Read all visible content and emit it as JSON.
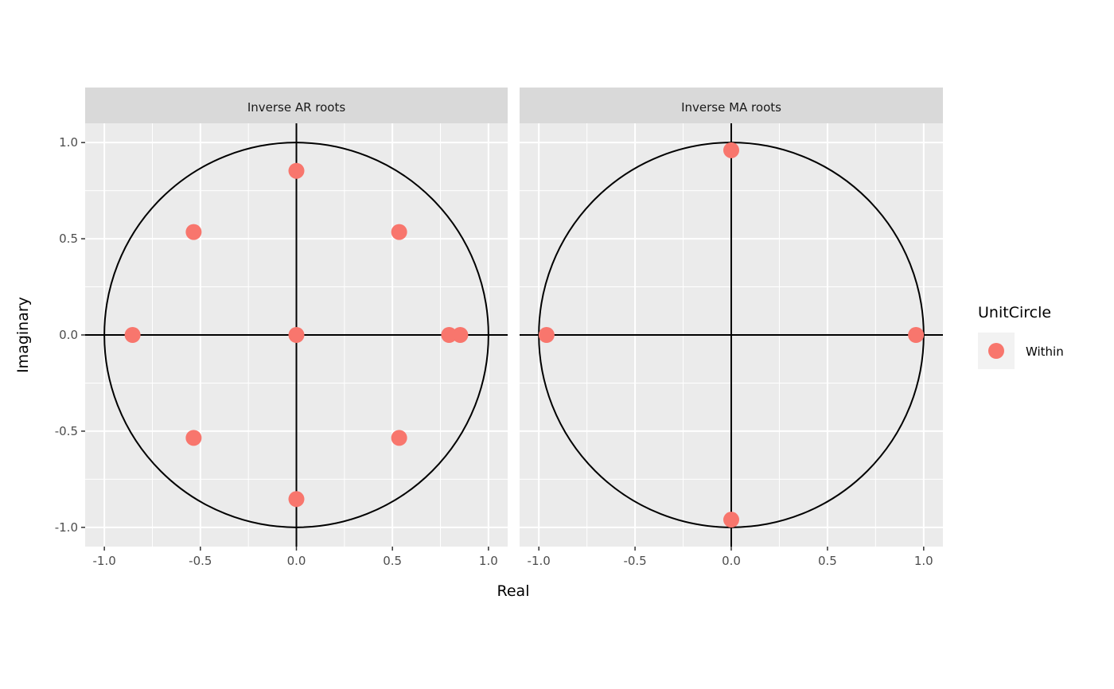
{
  "chart_data": {
    "type": "scatter",
    "xlabel": "Real",
    "ylabel": "Imaginary",
    "xlim": [
      -1.1,
      1.1
    ],
    "ylim": [
      -1.1,
      1.1
    ],
    "x_ticks": [
      "-1.0",
      "-0.5",
      "0.0",
      "0.5",
      "1.0"
    ],
    "y_ticks": [
      "-1.0",
      "-0.5",
      "0.0",
      "0.5",
      "1.0"
    ],
    "grid": true,
    "unit_circle": true,
    "legend": {
      "title": "UnitCircle",
      "position": "right",
      "entries": [
        {
          "label": "Within",
          "color": "#F8766D"
        }
      ]
    },
    "point_color": "#F8766D",
    "panels": [
      {
        "title": "Inverse AR roots",
        "points": [
          {
            "x": 0.0,
            "y": 0.853
          },
          {
            "x": -0.535,
            "y": 0.535
          },
          {
            "x": 0.535,
            "y": 0.535
          },
          {
            "x": -0.853,
            "y": 0.0
          },
          {
            "x": 0.0,
            "y": 0.0
          },
          {
            "x": 0.795,
            "y": 0.0
          },
          {
            "x": 0.853,
            "y": 0.0
          },
          {
            "x": -0.535,
            "y": -0.535
          },
          {
            "x": 0.535,
            "y": -0.535
          },
          {
            "x": 0.0,
            "y": -0.853
          }
        ]
      },
      {
        "title": "Inverse MA roots",
        "points": [
          {
            "x": 0.0,
            "y": 0.96
          },
          {
            "x": -0.96,
            "y": 0.0
          },
          {
            "x": 0.96,
            "y": 0.0
          },
          {
            "x": 0.0,
            "y": -0.96
          }
        ]
      }
    ]
  }
}
